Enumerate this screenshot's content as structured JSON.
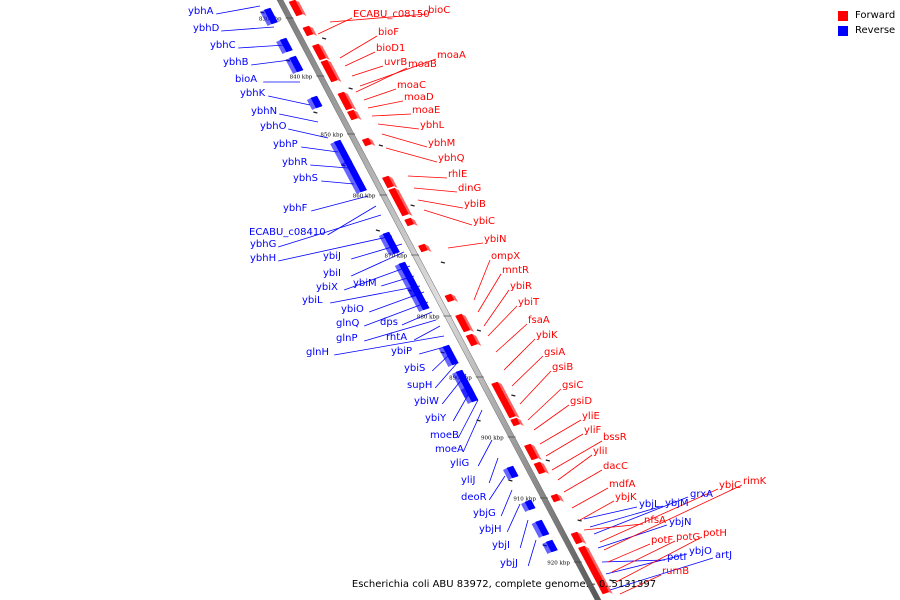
{
  "legend": {
    "forward": {
      "label": "Forward",
      "color": "#ff0000"
    },
    "reverse": {
      "label": "Reverse",
      "color": "#0000ff"
    }
  },
  "caption": "Escherichia coli ABU 83972, complete genome. - 0..5131397",
  "ticks": [
    "830 kbp",
    "840 kbp",
    "850 kbp",
    "860 kbp",
    "870 kbp",
    "880 kbp",
    "890 kbp",
    "900 kbp",
    "910 kbp",
    "920 kbp"
  ],
  "genes_reverse": [
    "ybhA",
    "ybhD",
    "ybhC",
    "ybhB",
    "bioA",
    "ybhK",
    "ybhN",
    "ybhO",
    "ybhP",
    "ybhR",
    "ybhS",
    "ybhF",
    "ECABU_c08410",
    "ybhG",
    "ybhH",
    "ybiJ",
    "ybiI",
    "ybiX",
    "ybiM",
    "ybiL",
    "ybiO",
    "glnQ",
    "dps",
    "glnP",
    "rhtA",
    "glnH",
    "ybiP",
    "ybiS",
    "supH",
    "ybiW",
    "ybiY",
    "moeB",
    "moeA",
    "yliG",
    "yliJ",
    "deoR",
    "ybjG",
    "ybjH",
    "ybjI",
    "ybjJ",
    "ybjL",
    "ybjM",
    "grxA",
    "ybjN",
    "potI",
    "ybjO",
    "artJ"
  ],
  "genes_forward": [
    "ECABU_c08150",
    "bioC",
    "bioF",
    "bioD1",
    "uvrB",
    "moaA",
    "moaB",
    "moaC",
    "moaD",
    "moaE",
    "ybhL",
    "ybhM",
    "ybhQ",
    "rhlE",
    "dinG",
    "ybiB",
    "ybiC",
    "ybiN",
    "ompX",
    "mntR",
    "ybiR",
    "ybiT",
    "fsaA",
    "ybiK",
    "gsiA",
    "gsiB",
    "gsiC",
    "gsiD",
    "yliE",
    "yliF",
    "bssR",
    "yliI",
    "dacC",
    "mdfA",
    "ybjK",
    "nfsA",
    "ybjC",
    "rimK",
    "potF",
    "potG",
    "potH",
    "rumB"
  ]
}
